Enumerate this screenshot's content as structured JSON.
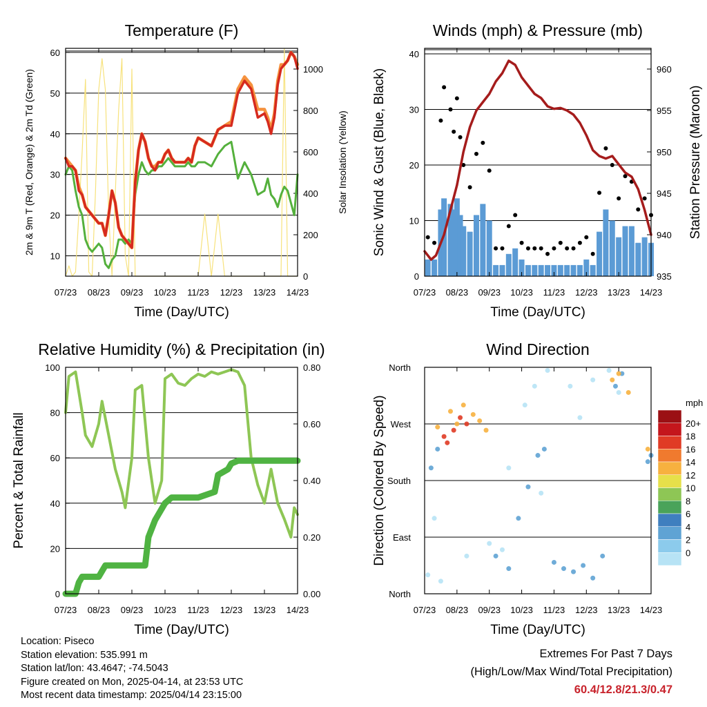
{
  "time_ticks": [
    "07/23",
    "08/23",
    "09/23",
    "10/23",
    "11/23",
    "12/23",
    "13/23",
    "14/23"
  ],
  "xlabel": "Time (Day/UTC)",
  "panels": {
    "temperature": {
      "title": "Temperature (F)",
      "ylabel_left": "2m & 9m T (Red, Orange) & 2m Td (Green)",
      "ylabel_right": "Solar Insolation (Yellow)",
      "left_ticks": [
        "10",
        "20",
        "30",
        "40",
        "50",
        "60"
      ],
      "right_ticks": [
        "0",
        "200",
        "400",
        "600",
        "800",
        "1000"
      ]
    },
    "winds": {
      "title": "Winds (mph) & Pressure (mb)",
      "ylabel_left": "Sonic Wind & Gust (Blue, Black)",
      "ylabel_right": "Station Pressure (Maroon)",
      "left_ticks": [
        "0",
        "10",
        "20",
        "30",
        "40"
      ],
      "right_ticks": [
        "935",
        "940",
        "945",
        "950",
        "955",
        "960"
      ]
    },
    "humidity": {
      "title": "Relative Humidity (%) & Precipitation (in)",
      "ylabel_left": "Percent & Total Rainfall",
      "left_ticks": [
        "0",
        "20",
        "40",
        "60",
        "80",
        "100"
      ],
      "right_ticks": [
        "0.00",
        "0.20",
        "0.40",
        "0.60",
        "0.80"
      ]
    },
    "direction": {
      "title": "Wind Direction",
      "ylabel_left": "Direction (Colored By Speed)",
      "dir_ticks": [
        "North",
        "East",
        "South",
        "West",
        "North"
      ],
      "colorbar_title": "mph",
      "colorbar_labels": [
        "0",
        "2",
        "4",
        "6",
        "8",
        "10",
        "12",
        "14",
        "16",
        "18",
        "20+"
      ],
      "colorbar_colors": [
        "#b7e3f5",
        "#8ccbec",
        "#5fa3d4",
        "#3f7fbf",
        "#4aa35a",
        "#8ec655",
        "#e6e04a",
        "#f7b13f",
        "#f07a2e",
        "#e03b25",
        "#c4161c",
        "#9b1014"
      ]
    }
  },
  "chart_data": [
    {
      "type": "line",
      "title": "Temperature (F)",
      "xlabel": "Time (Day/UTC)",
      "ylabel": "2m & 9m T (Red, Orange) & 2m Td (Green)",
      "y2label": "Solar Insolation (Yellow)",
      "x": [
        0,
        0.1,
        0.2,
        0.3,
        0.4,
        0.5,
        0.6,
        0.7,
        0.8,
        0.9,
        1.0,
        1.1,
        1.2,
        1.3,
        1.4,
        1.5,
        1.6,
        1.7,
        1.8,
        1.9,
        2.0,
        2.1,
        2.2,
        2.3,
        2.4,
        2.5,
        2.6,
        2.7,
        2.8,
        2.9,
        3.0,
        3.1,
        3.2,
        3.3,
        3.4,
        3.5,
        3.6,
        3.7,
        3.8,
        3.9,
        4.0,
        4.2,
        4.4,
        4.6,
        4.8,
        5.0,
        5.2,
        5.4,
        5.6,
        5.8,
        6.0,
        6.1,
        6.2,
        6.3,
        6.4,
        6.5,
        6.6,
        6.7,
        6.8,
        6.9,
        7.0
      ],
      "ylim": [
        5,
        61
      ],
      "y2lim": [
        0,
        1100
      ],
      "series": [
        {
          "color": "#d62a1e",
          "values": [
            34,
            32,
            32,
            31,
            26,
            25,
            22,
            21,
            20,
            19,
            18,
            18,
            15,
            20,
            26,
            23,
            17,
            15,
            14,
            13,
            12,
            28,
            36,
            40,
            38,
            34,
            32,
            31,
            33,
            33,
            35,
            36,
            34,
            33,
            33,
            33,
            33,
            34,
            33,
            37,
            39,
            38,
            37,
            41,
            42,
            42,
            50,
            53,
            51,
            44,
            45,
            43,
            40,
            44,
            52,
            56,
            57,
            58,
            60,
            59,
            56
          ]
        },
        {
          "color": "#f5923e",
          "values": [
            34,
            33,
            32,
            31,
            27,
            25,
            22,
            21,
            20,
            19,
            18,
            18,
            15,
            20,
            26,
            23,
            17,
            15,
            14,
            13,
            12,
            28,
            36,
            40,
            38,
            34,
            32,
            32,
            33,
            33,
            35,
            36,
            34,
            33,
            33,
            33,
            33,
            34,
            33,
            37,
            39,
            38,
            37,
            41,
            42,
            43,
            51,
            54,
            52,
            46,
            46,
            44,
            41,
            45,
            53,
            57,
            57,
            58,
            60,
            59,
            57
          ]
        },
        {
          "color": "#54b03c",
          "values": [
            30,
            32,
            31,
            26,
            22,
            20,
            14,
            12,
            11,
            12,
            13,
            12,
            8,
            7,
            9,
            10,
            14,
            14,
            13,
            14,
            13,
            25,
            30,
            33,
            31,
            30,
            31,
            31,
            32,
            32,
            33,
            34,
            33,
            32,
            32,
            32,
            32,
            33,
            32,
            32,
            33,
            33,
            32,
            35,
            37,
            38,
            29,
            33,
            30,
            25,
            26,
            29,
            25,
            24,
            22,
            25,
            27,
            26,
            23,
            20,
            30
          ]
        },
        {
          "color": "#f7e27c",
          "axis": "y2",
          "values": [
            0,
            50,
            0,
            20,
            300,
            600,
            950,
            20,
            0,
            400,
            900,
            1050,
            900,
            300,
            0,
            400,
            800,
            1050,
            100,
            0,
            1000,
            0,
            0,
            0,
            0,
            0,
            0,
            0,
            0,
            0,
            0,
            0,
            0,
            0,
            0,
            0,
            0,
            0,
            0,
            0,
            0,
            300,
            0,
            300,
            0,
            0,
            0,
            0,
            0,
            0,
            0,
            0,
            0,
            0,
            0,
            0,
            1100,
            0,
            0,
            0,
            0
          ]
        }
      ]
    },
    {
      "type": "scatter",
      "title": "Winds (mph) & Pressure (mb)",
      "xlabel": "Time (Day/UTC)",
      "ylabel": "Sonic Wind & Gust (Blue, Black)",
      "y2label": "Station Pressure (Maroon)",
      "ylim": [
        0,
        41
      ],
      "y2lim": [
        935,
        962.5
      ],
      "series": [
        {
          "color": "#000000",
          "x": [
            0.1,
            0.3,
            0.5,
            0.6,
            0.8,
            0.9,
            1.0,
            1.1,
            1.2,
            1.4,
            1.6,
            1.8,
            2.0,
            2.2,
            2.4,
            2.6,
            2.8,
            3.0,
            3.2,
            3.4,
            3.6,
            3.8,
            4.0,
            4.2,
            4.4,
            4.6,
            4.8,
            5.0,
            5.2,
            5.4,
            5.6,
            5.8,
            6.0,
            6.2,
            6.4,
            6.6,
            6.8,
            7.0
          ],
          "values": [
            7,
            6,
            28,
            34,
            30,
            26,
            32,
            25,
            20,
            16,
            22,
            24,
            19,
            5,
            5,
            9,
            11,
            6,
            5,
            5,
            5,
            4,
            5,
            6,
            5,
            5,
            6,
            7,
            4,
            15,
            23,
            20,
            14,
            18,
            17,
            12,
            14,
            11
          ]
        },
        {
          "color": "#5b9bd5",
          "x": [
            0.1,
            0.3,
            0.5,
            0.6,
            0.8,
            0.9,
            1.0,
            1.1,
            1.2,
            1.4,
            1.6,
            1.8,
            2.0,
            2.2,
            2.4,
            2.6,
            2.8,
            3.0,
            3.2,
            3.4,
            3.6,
            3.8,
            4.0,
            4.2,
            4.4,
            4.6,
            4.8,
            5.0,
            5.2,
            5.4,
            5.6,
            5.8,
            6.0,
            6.2,
            6.4,
            6.6,
            6.8,
            7.0
          ],
          "values": [
            3,
            3,
            12,
            14,
            13,
            12,
            14,
            11,
            9,
            8,
            11,
            13,
            10,
            2,
            2,
            4,
            5,
            3,
            2,
            2,
            2,
            2,
            2,
            2,
            2,
            2,
            2,
            3,
            2,
            8,
            12,
            10,
            7,
            9,
            9,
            6,
            7,
            6
          ]
        },
        {
          "color": "#a51c1c",
          "axis": "y2",
          "x": [
            0,
            0.2,
            0.35,
            0.6,
            0.8,
            1.0,
            1.2,
            1.4,
            1.6,
            1.8,
            2.0,
            2.2,
            2.4,
            2.6,
            2.8,
            3.0,
            3.2,
            3.4,
            3.6,
            3.8,
            4.0,
            4.2,
            4.4,
            4.6,
            4.8,
            5.0,
            5.2,
            5.4,
            5.6,
            5.8,
            6.0,
            6.2,
            6.4,
            6.6,
            6.8,
            7.0
          ],
          "values": [
            938,
            937,
            937.5,
            940,
            943,
            946,
            950,
            953,
            955,
            956,
            957,
            958.5,
            959.5,
            961,
            960.5,
            959,
            958,
            957,
            956.5,
            955.5,
            955.2,
            955.3,
            955,
            954.5,
            953.5,
            952,
            950.2,
            949.5,
            949.2,
            949.5,
            948.5,
            947.5,
            947,
            945.5,
            943,
            940
          ]
        }
      ]
    },
    {
      "type": "line",
      "title": "Relative Humidity (%) & Precipitation (in)",
      "xlabel": "Time (Day/UTC)",
      "ylabel": "Percent & Total Rainfall",
      "ylim": [
        0,
        100
      ],
      "y2lim": [
        0,
        0.8
      ],
      "series": [
        {
          "color": "#8ec655",
          "x": [
            0,
            0.1,
            0.3,
            0.5,
            0.6,
            0.8,
            1.0,
            1.1,
            1.3,
            1.5,
            1.7,
            1.8,
            2.0,
            2.1,
            2.3,
            2.5,
            2.7,
            2.9,
            3.0,
            3.2,
            3.4,
            3.6,
            3.8,
            4.0,
            4.2,
            4.4,
            4.6,
            4.8,
            5.0,
            5.2,
            5.4,
            5.6,
            5.8,
            6.0,
            6.2,
            6.4,
            6.6,
            6.8,
            6.9,
            7.0
          ],
          "values": [
            80,
            96,
            98,
            80,
            70,
            65,
            75,
            85,
            70,
            55,
            45,
            38,
            60,
            90,
            92,
            60,
            40,
            50,
            95,
            97,
            93,
            92,
            95,
            97,
            96,
            98,
            97,
            98,
            99,
            98,
            92,
            60,
            48,
            40,
            55,
            40,
            33,
            25,
            38,
            35
          ]
        },
        {
          "color": "#4fb342",
          "axis": "y2",
          "x": [
            0,
            0.3,
            0.4,
            0.5,
            1.0,
            1.1,
            1.2,
            1.5,
            2.0,
            2.4,
            2.5,
            2.7,
            2.9,
            3.0,
            3.2,
            3.5,
            4.0,
            4.5,
            4.6,
            4.9,
            5.0,
            5.2,
            5.4,
            5.6,
            6.0,
            6.5,
            7.0
          ],
          "values": [
            0,
            0,
            0.04,
            0.06,
            0.06,
            0.08,
            0.1,
            0.1,
            0.1,
            0.1,
            0.2,
            0.26,
            0.3,
            0.32,
            0.34,
            0.34,
            0.34,
            0.36,
            0.42,
            0.44,
            0.46,
            0.47,
            0.47,
            0.47,
            0.47,
            0.47,
            0.47
          ]
        }
      ]
    },
    {
      "type": "scatter",
      "title": "Wind Direction",
      "xlabel": "Time (Day/UTC)",
      "ylabel": "Direction (Colored By Speed)",
      "ylim": [
        0,
        360
      ],
      "note": "speed-colored points",
      "series": [
        {
          "name": "0",
          "color": "#b7e3f5",
          "x": [
            0.1,
            0.5,
            1.3,
            2.0,
            2.4,
            3.1,
            3.4,
            3.8,
            4.5,
            5.2,
            5.7,
            6.0,
            0.3,
            2.6,
            3.6,
            4.8
          ],
          "values": [
            30,
            20,
            60,
            80,
            70,
            300,
            330,
            355,
            330,
            340,
            355,
            320,
            120,
            200,
            160,
            280
          ]
        },
        {
          "name": "4",
          "color": "#5fa3d4",
          "x": [
            0.2,
            0.4,
            2.2,
            2.6,
            2.9,
            3.2,
            3.5,
            3.7,
            4.0,
            4.3,
            4.6,
            4.9,
            5.2,
            5.5,
            5.9,
            6.1,
            6.9,
            7.0
          ],
          "values": [
            200,
            230,
            60,
            40,
            120,
            170,
            220,
            230,
            50,
            40,
            35,
            45,
            25,
            60,
            330,
            350,
            210,
            220
          ]
        },
        {
          "name": "12",
          "color": "#f7b13f",
          "x": [
            0.4,
            0.8,
            1.0,
            1.2,
            1.5,
            1.7,
            1.9,
            5.8,
            6.0,
            6.3,
            6.9
          ],
          "values": [
            265,
            290,
            270,
            300,
            285,
            275,
            260,
            340,
            350,
            320,
            230
          ]
        },
        {
          "name": "18",
          "color": "#e03b25",
          "x": [
            0.6,
            0.7,
            0.9,
            1.1,
            1.3
          ],
          "values": [
            250,
            240,
            260,
            280,
            270
          ]
        }
      ]
    }
  ],
  "info": {
    "location": "Location: Piseco",
    "elevation": "Station elevation: 535.991 m",
    "latlon": "Station lat/lon: 43.4647; -74.5043",
    "created": "Figure created on Mon, 2025-04-14, at 23:53 UTC",
    "recent": "Most recent data timestamp: 2025/04/14 23:15:00"
  },
  "extremes": {
    "line1": "Extremes For Past 7 Days",
    "line2": "(High/Low/Max Wind/Total Precipitation)",
    "values": "60.4/12.8/21.3/0.47"
  }
}
